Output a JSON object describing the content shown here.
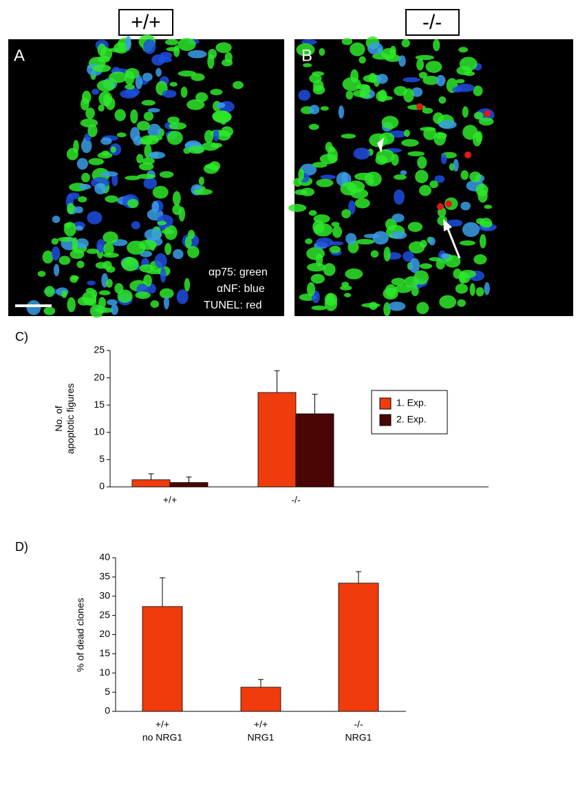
{
  "panels": [
    {
      "header": "+/+",
      "label": "A",
      "legend": [
        "αp75: green",
        "αNF: blue",
        "TUNEL: red"
      ]
    },
    {
      "header": "-/-",
      "label": "B"
    }
  ],
  "chart_data": [
    {
      "type": "bar",
      "panel": "C)",
      "ylabel": [
        "No. of",
        "apoptotic figures"
      ],
      "categories": [
        [
          "+/+"
        ],
        [
          "-/-"
        ]
      ],
      "series": [
        {
          "name": "1. Exp.",
          "color": "#f03c0c",
          "values": [
            1.3,
            17.3
          ],
          "errors": [
            1.1,
            4.0
          ]
        },
        {
          "name": "2. Exp.",
          "color": "#4a0505",
          "values": [
            0.8,
            13.4
          ],
          "errors": [
            1.0,
            3.6
          ]
        }
      ],
      "ylim": [
        0,
        25
      ],
      "yticks": [
        0,
        5,
        10,
        15,
        20,
        25
      ]
    },
    {
      "type": "bar",
      "panel": "D)",
      "ylabel": [
        "% of dead clones"
      ],
      "categories": [
        [
          "+/+",
          "no NRG1"
        ],
        [
          "+/+",
          "NRG1"
        ],
        [
          "-/-",
          "NRG1"
        ]
      ],
      "series": [
        {
          "color": "#f03c0c",
          "values": [
            27.3,
            6.3,
            33.4
          ],
          "errors": [
            7.5,
            2.0,
            3.0
          ]
        }
      ],
      "ylim": [
        0,
        40
      ],
      "yticks": [
        0,
        5,
        10,
        15,
        20,
        25,
        30,
        35,
        40
      ]
    }
  ]
}
